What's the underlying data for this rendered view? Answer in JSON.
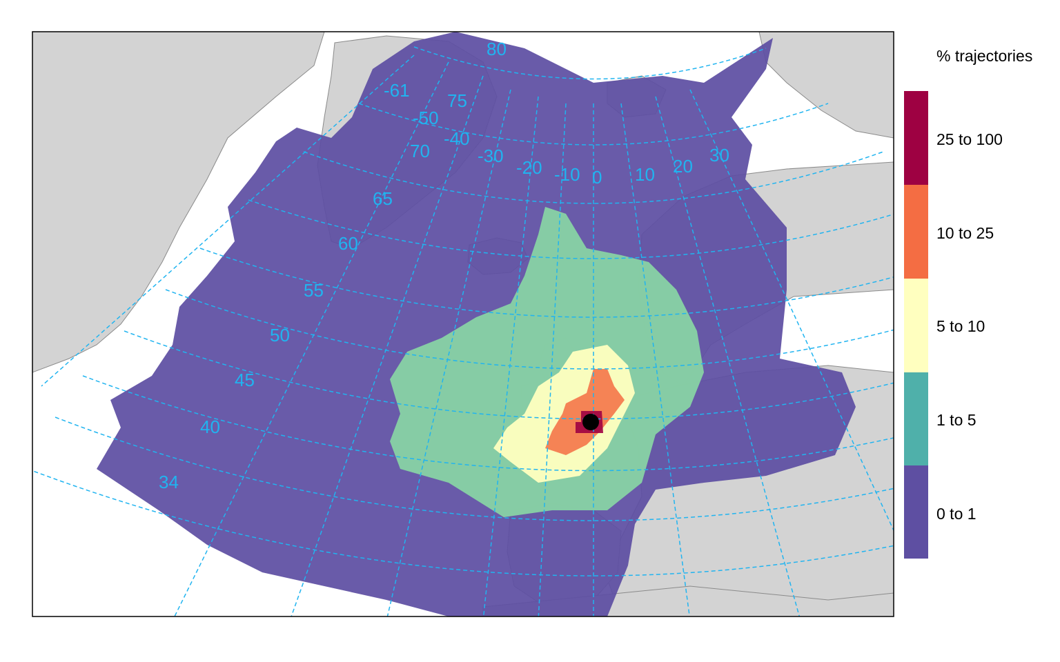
{
  "legend": {
    "title": "% trajectories",
    "classes": [
      {
        "label": "25 to 100",
        "color": "#9e0142"
      },
      {
        "label": "10 to 25",
        "color": "#f46d43"
      },
      {
        "label": "5 to 10",
        "color": "#ffffbf"
      },
      {
        "label": "1 to 5",
        "color": "#4fb0aa"
      },
      {
        "label": "0 to 1",
        "color": "#5e4fa2"
      }
    ]
  },
  "graticule": {
    "longitude_labels": [
      "-61",
      "-50",
      "-40",
      "-30",
      "-20",
      "-10",
      "0",
      "10",
      "20",
      "30"
    ],
    "latitude_labels": [
      "80",
      "75",
      "70",
      "65",
      "60",
      "55",
      "50",
      "45",
      "40",
      "34"
    ]
  },
  "colors": {
    "land": "#d3d3d3",
    "ocean": "#ffffff",
    "graticule": "#20b4f0",
    "receptor": "#000000"
  }
}
